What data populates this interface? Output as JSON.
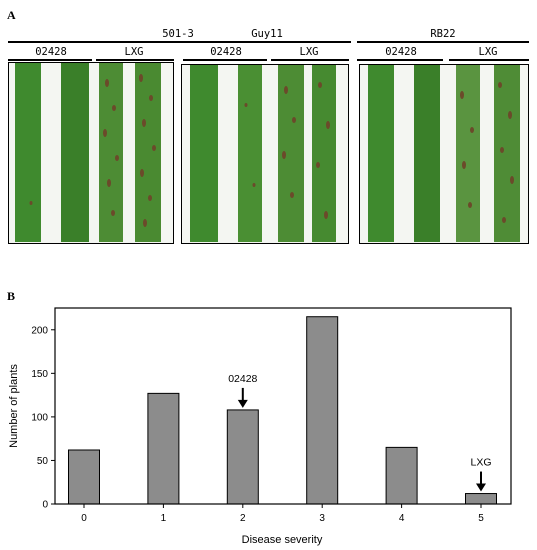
{
  "panel_a": {
    "letter": "A",
    "groups": [
      {
        "title": "501-3",
        "left_label": "02428",
        "right_label": "LXG"
      },
      {
        "title": "Guy11",
        "left_label": "02428",
        "right_label": "LXG"
      },
      {
        "title": "RB22",
        "left_label": "02428",
        "right_label": "LXG"
      }
    ]
  },
  "panel_b": {
    "letter": "B"
  },
  "colors": {
    "bar_fill": "#8c8c8c",
    "leaf_green": "#3f8a2e",
    "lesion": "#6b4a2a"
  },
  "chart_data": {
    "type": "bar",
    "categories": [
      "0",
      "1",
      "2",
      "3",
      "4",
      "5"
    ],
    "values": [
      62,
      127,
      108,
      215,
      65,
      12
    ],
    "xlabel": "Disease severity",
    "ylabel": "Number of plants",
    "ylim": [
      0,
      225
    ],
    "yticks": [
      0,
      50,
      100,
      150,
      200
    ],
    "grid": false,
    "annotations": [
      {
        "category": "2",
        "text": "02428"
      },
      {
        "category": "5",
        "text": "LXG"
      }
    ]
  }
}
